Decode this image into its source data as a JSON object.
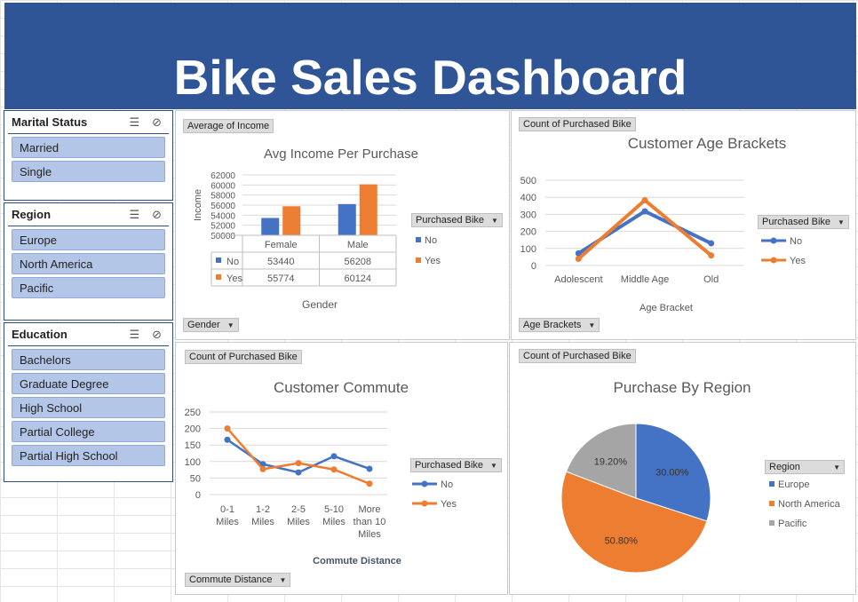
{
  "dashboard": {
    "title": "Bike Sales Dashboard"
  },
  "slicers": [
    {
      "title": "Marital Status",
      "items": [
        "Married",
        "Single"
      ]
    },
    {
      "title": "Region",
      "items": [
        "Europe",
        "North America",
        "Pacific"
      ]
    },
    {
      "title": "Education",
      "items": [
        "Bachelors",
        "Graduate Degree",
        "High School",
        "Partial College",
        "Partial High School"
      ]
    }
  ],
  "icons": {
    "multi_select": "multi-select-icon",
    "clear_filter": "clear-filter-icon",
    "dropdown": "dropdown-arrow-icon"
  },
  "colors": {
    "banner": "#2f5597",
    "no": "#4472c4",
    "yes": "#ed7d31",
    "pacific": "#a5a5a5",
    "slicer_item": "#b4c6e7"
  },
  "field_buttons": {
    "income_value": "Average of Income",
    "income_axis": "Gender",
    "age_value": "Count of Purchased Bike",
    "age_axis": "Age Brackets",
    "commute_value": "Count of Purchased Bike",
    "commute_axis": "Commute Distance",
    "region_value": "Count of Purchased Bike"
  },
  "legends": {
    "purchased_bike": "Purchased Bike",
    "region": "Region"
  },
  "chart_data": [
    {
      "type": "bar",
      "title": "Avg Income Per Purchase",
      "xlabel": "Gender",
      "ylabel": "Income",
      "categories": [
        "Female",
        "Male"
      ],
      "series": [
        {
          "name": "No",
          "values": [
            53440,
            56208
          ]
        },
        {
          "name": "Yes",
          "values": [
            55774,
            60124
          ]
        }
      ],
      "ylim": [
        50000,
        62000
      ],
      "yticks": [
        "50000",
        "52000",
        "54000",
        "56000",
        "58000",
        "60000",
        "62000"
      ],
      "data_table": true,
      "legend": "right"
    },
    {
      "type": "line",
      "title": "Customer Age Brackets",
      "xlabel": "Age Bracket",
      "ylabel": "",
      "categories": [
        "Adolescent",
        "Middle Age",
        "Old"
      ],
      "series": [
        {
          "name": "No",
          "values": [
            71,
            318,
            130
          ]
        },
        {
          "name": "Yes",
          "values": [
            39,
            383,
            59
          ]
        }
      ],
      "ylim": [
        0,
        500
      ],
      "yticks": [
        "0",
        "100",
        "200",
        "300",
        "400",
        "500"
      ],
      "legend": "right"
    },
    {
      "type": "line",
      "title": "Customer Commute",
      "xlabel": "Commute Distance",
      "ylabel": "",
      "categories": [
        "0-1 Miles",
        "1-2 Miles",
        "2-5 Miles",
        "5-10 Miles",
        "More than 10 Miles"
      ],
      "category_lines": [
        [
          "0-1",
          "Miles"
        ],
        [
          "1-2",
          "Miles"
        ],
        [
          "2-5",
          "Miles"
        ],
        [
          "5-10",
          "Miles"
        ],
        [
          "More",
          "than 10",
          "Miles"
        ]
      ],
      "series": [
        {
          "name": "No",
          "values": [
            166,
            92,
            67,
            116,
            78
          ]
        },
        {
          "name": "Yes",
          "values": [
            200,
            77,
            95,
            76,
            33
          ]
        }
      ],
      "ylim": [
        0,
        250
      ],
      "yticks": [
        "0",
        "50",
        "100",
        "150",
        "200",
        "250"
      ],
      "legend": "right"
    },
    {
      "type": "pie",
      "title": "Purchase By Region",
      "categories": [
        "Europe",
        "North America",
        "Pacific"
      ],
      "values": [
        30.0,
        50.8,
        19.2
      ],
      "labels": [
        "30.00%",
        "50.80%",
        "19.20%"
      ],
      "legend": "right"
    }
  ]
}
